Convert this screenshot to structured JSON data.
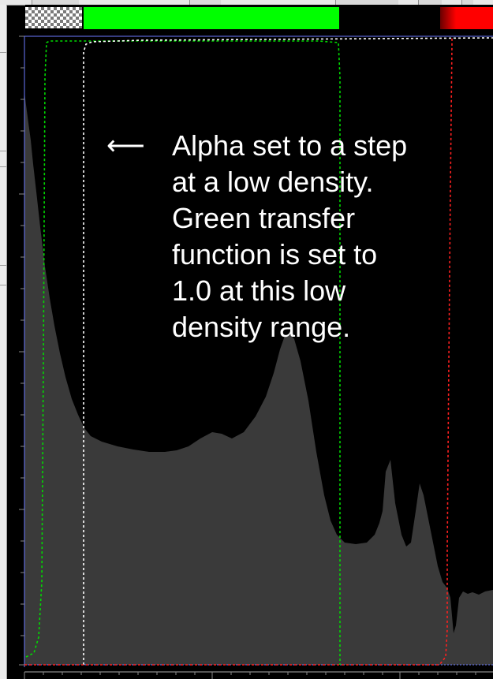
{
  "annotation": {
    "arrow": "⟵",
    "text": "Alpha set to a step\nat a low density.\nGreen transfer\nfunction is set to\n1.0 at this low\ndensity range."
  },
  "colors": {
    "background": "#000000",
    "histogram_fill": "#3a3a3a",
    "alpha_curve": "#ffffff",
    "green_curve": "#00dd00",
    "red_curve": "#ff2020",
    "blue_curve": "#3355ff",
    "colorbar_green": "#00ff00",
    "colorbar_red": "#ff0000"
  },
  "transfer_functions": {
    "alpha": "step at low density",
    "green": "1.0 at low density range",
    "red": "ramp at high density"
  }
}
